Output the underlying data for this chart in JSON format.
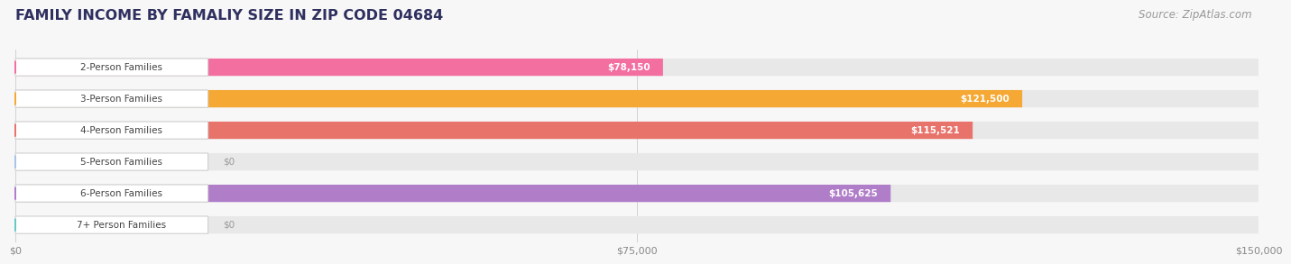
{
  "title": "FAMILY INCOME BY FAMALIY SIZE IN ZIP CODE 04684",
  "source": "Source: ZipAtlas.com",
  "categories": [
    "2-Person Families",
    "3-Person Families",
    "4-Person Families",
    "5-Person Families",
    "6-Person Families",
    "7+ Person Families"
  ],
  "values": [
    78150,
    121500,
    115521,
    0,
    105625,
    0
  ],
  "bar_colors": [
    "#F26FA0",
    "#F5A833",
    "#E8736B",
    "#A8C4E8",
    "#B07DC8",
    "#68C8C8"
  ],
  "value_labels": [
    "$78,150",
    "$121,500",
    "$115,521",
    "$0",
    "$105,625",
    "$0"
  ],
  "xlim_max": 150000,
  "xticks": [
    0,
    75000,
    150000
  ],
  "xticklabels": [
    "$0",
    "$75,000",
    "$150,000"
  ],
  "background_color": "#f7f7f7",
  "bar_bg_color": "#e8e8e8",
  "title_color": "#303060",
  "title_fontsize": 11.5,
  "source_fontsize": 8.5,
  "label_fontsize": 7.5,
  "value_fontsize": 7.5
}
